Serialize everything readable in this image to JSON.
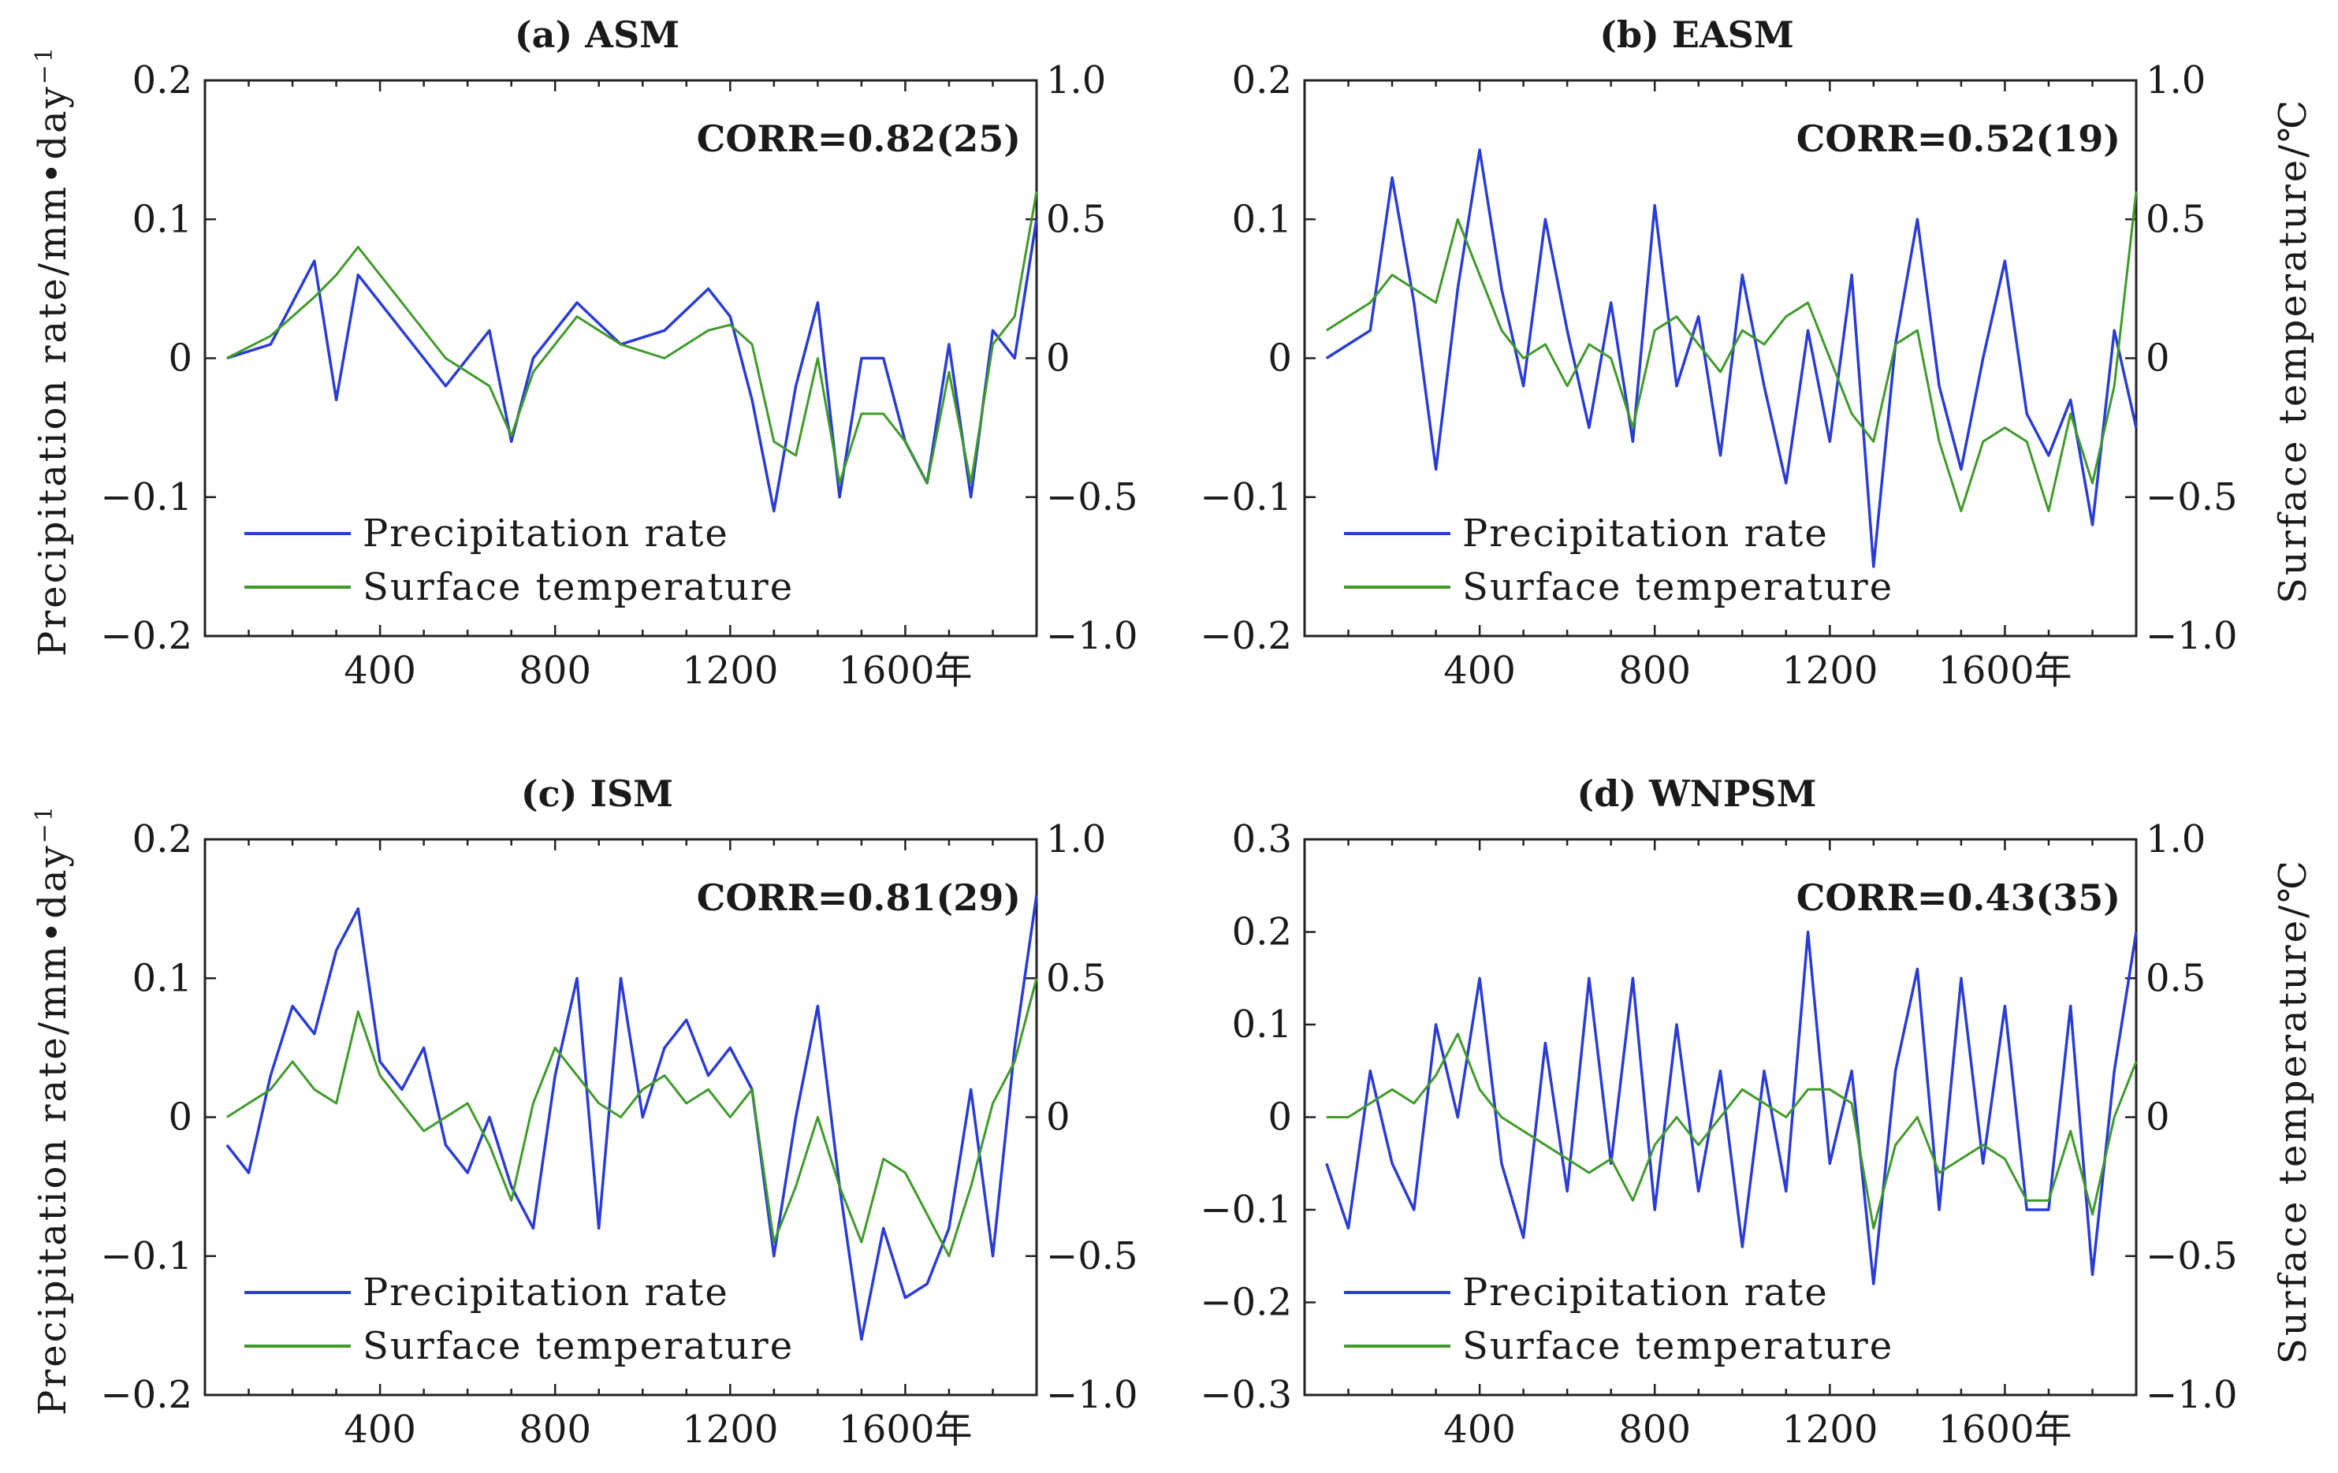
{
  "figure": {
    "left_axis_label": "Precipitation rate/mm•day",
    "left_axis_label_sup": "−1",
    "right_axis_label": "Surface temperature/℃",
    "colors": {
      "precip": "#2a3cd6",
      "temp": "#3f9a2a"
    }
  },
  "chart_data": [
    {
      "type": "line",
      "id": "a",
      "title": "(a) ASM",
      "corr": "CORR=0.82(25)",
      "xlabel": "",
      "xticks": [
        "400",
        "800",
        "1200",
        "1600年"
      ],
      "xtick_values": [
        400,
        800,
        1200,
        1600
      ],
      "xlim": [
        0,
        1900
      ],
      "ylim_left": [
        -0.2,
        0.2
      ],
      "yticks_left": [
        "−0.2",
        "−0.1",
        "0",
        "0.1",
        "0.2"
      ],
      "ylim_right": [
        -1.0,
        1.0
      ],
      "yticks_right": [
        "−1.0",
        "−0.5",
        "0",
        "0.5",
        "1.0"
      ],
      "legend": [
        "Precipitation rate",
        "Surface temperature"
      ],
      "series": [
        {
          "name": "Precipitation rate",
          "x": [
            50,
            150,
            250,
            300,
            350,
            450,
            550,
            650,
            700,
            750,
            850,
            950,
            1050,
            1150,
            1200,
            1250,
            1300,
            1350,
            1400,
            1450,
            1500,
            1550,
            1600,
            1650,
            1700,
            1750,
            1800,
            1850,
            1900
          ],
          "values": [
            0.0,
            0.01,
            0.07,
            -0.03,
            0.06,
            0.02,
            -0.02,
            0.02,
            -0.06,
            0.0,
            0.04,
            0.01,
            0.02,
            0.05,
            0.03,
            -0.03,
            -0.11,
            -0.02,
            0.04,
            -0.1,
            0.0,
            0.0,
            -0.06,
            -0.09,
            0.01,
            -0.1,
            0.02,
            0.0,
            0.1
          ]
        },
        {
          "name": "Surface temperature",
          "x": [
            50,
            150,
            250,
            300,
            350,
            450,
            550,
            650,
            700,
            750,
            850,
            950,
            1050,
            1150,
            1200,
            1250,
            1300,
            1350,
            1400,
            1450,
            1500,
            1550,
            1600,
            1650,
            1700,
            1750,
            1800,
            1850,
            1900
          ],
          "values": [
            0.0,
            0.08,
            0.22,
            0.3,
            0.4,
            0.2,
            0.0,
            -0.1,
            -0.28,
            -0.05,
            0.15,
            0.05,
            0.0,
            0.1,
            0.12,
            0.05,
            -0.3,
            -0.35,
            0.0,
            -0.45,
            -0.2,
            -0.2,
            -0.3,
            -0.45,
            -0.05,
            -0.45,
            0.05,
            0.15,
            0.6
          ]
        }
      ]
    },
    {
      "type": "line",
      "id": "b",
      "title": "(b) EASM",
      "corr": "CORR=0.52(19)",
      "xlabel": "",
      "xticks": [
        "400",
        "800",
        "1200",
        "1600年"
      ],
      "xtick_values": [
        400,
        800,
        1200,
        1600
      ],
      "xlim": [
        0,
        1900
      ],
      "ylim_left": [
        -0.2,
        0.2
      ],
      "yticks_left": [
        "−0.2",
        "−0.1",
        "0",
        "0.1",
        "0.2"
      ],
      "ylim_right": [
        -1.0,
        1.0
      ],
      "yticks_right": [
        "−1.0",
        "−0.5",
        "0",
        "0.5",
        "1.0"
      ],
      "legend": [
        "Precipitation rate",
        "Surface temperature"
      ],
      "series": [
        {
          "name": "Precipitation rate",
          "x": [
            50,
            150,
            200,
            250,
            300,
            350,
            400,
            450,
            500,
            550,
            600,
            650,
            700,
            750,
            800,
            850,
            900,
            950,
            1000,
            1050,
            1100,
            1150,
            1200,
            1250,
            1300,
            1350,
            1400,
            1450,
            1500,
            1550,
            1600,
            1650,
            1700,
            1750,
            1800,
            1850,
            1900
          ],
          "values": [
            0.0,
            0.02,
            0.13,
            0.04,
            -0.08,
            0.05,
            0.15,
            0.05,
            -0.02,
            0.1,
            0.02,
            -0.05,
            0.04,
            -0.06,
            0.11,
            -0.02,
            0.03,
            -0.07,
            0.06,
            -0.02,
            -0.09,
            0.02,
            -0.06,
            0.06,
            -0.15,
            0.01,
            0.1,
            -0.02,
            -0.08,
            0.0,
            0.07,
            -0.04,
            -0.07,
            -0.03,
            -0.12,
            0.02,
            -0.05
          ]
        },
        {
          "name": "Surface temperature",
          "x": [
            50,
            150,
            200,
            250,
            300,
            350,
            400,
            450,
            500,
            550,
            600,
            650,
            700,
            750,
            800,
            850,
            900,
            950,
            1000,
            1050,
            1100,
            1150,
            1200,
            1250,
            1300,
            1350,
            1400,
            1450,
            1500,
            1550,
            1600,
            1650,
            1700,
            1750,
            1800,
            1850,
            1900
          ],
          "values": [
            0.1,
            0.2,
            0.3,
            0.25,
            0.2,
            0.5,
            0.3,
            0.1,
            0.0,
            0.05,
            -0.1,
            0.05,
            0.0,
            -0.25,
            0.1,
            0.15,
            0.05,
            -0.05,
            0.1,
            0.05,
            0.15,
            0.2,
            0.0,
            -0.2,
            -0.3,
            0.05,
            0.1,
            -0.3,
            -0.55,
            -0.3,
            -0.25,
            -0.3,
            -0.55,
            -0.2,
            -0.45,
            -0.1,
            0.6
          ]
        }
      ]
    },
    {
      "type": "line",
      "id": "c",
      "title": "(c) ISM",
      "corr": "CORR=0.81(29)",
      "xlabel": "",
      "xticks": [
        "400",
        "800",
        "1200",
        "1600年"
      ],
      "xtick_values": [
        400,
        800,
        1200,
        1600
      ],
      "xlim": [
        0,
        1900
      ],
      "ylim_left": [
        -0.2,
        0.2
      ],
      "yticks_left": [
        "−0.2",
        "−0.1",
        "0",
        "0.1",
        "0.2"
      ],
      "ylim_right": [
        -1.0,
        1.0
      ],
      "yticks_right": [
        "−1.0",
        "−0.5",
        "0",
        "0.5",
        "1.0"
      ],
      "legend": [
        "Precipitation rate",
        "Surface temperature"
      ],
      "series": [
        {
          "name": "Precipitation rate",
          "x": [
            50,
            100,
            150,
            200,
            250,
            300,
            350,
            400,
            450,
            500,
            550,
            600,
            650,
            700,
            750,
            800,
            850,
            900,
            950,
            1000,
            1050,
            1100,
            1150,
            1200,
            1250,
            1300,
            1350,
            1400,
            1450,
            1500,
            1550,
            1600,
            1650,
            1700,
            1750,
            1800,
            1850,
            1900
          ],
          "values": [
            -0.02,
            -0.04,
            0.03,
            0.08,
            0.06,
            0.12,
            0.15,
            0.04,
            0.02,
            0.05,
            -0.02,
            -0.04,
            0.0,
            -0.05,
            -0.08,
            0.03,
            0.1,
            -0.08,
            0.1,
            0.0,
            0.05,
            0.07,
            0.03,
            0.05,
            0.02,
            -0.1,
            0.0,
            0.08,
            -0.05,
            -0.16,
            -0.08,
            -0.13,
            -0.12,
            -0.08,
            0.02,
            -0.1,
            0.05,
            0.16
          ]
        },
        {
          "name": "Surface temperature",
          "x": [
            50,
            100,
            150,
            200,
            250,
            300,
            350,
            400,
            450,
            500,
            550,
            600,
            650,
            700,
            750,
            800,
            850,
            900,
            950,
            1000,
            1050,
            1100,
            1150,
            1200,
            1250,
            1300,
            1350,
            1400,
            1450,
            1500,
            1550,
            1600,
            1650,
            1700,
            1750,
            1800,
            1850,
            1900
          ],
          "values": [
            0.0,
            0.05,
            0.1,
            0.2,
            0.1,
            0.05,
            0.38,
            0.15,
            0.05,
            -0.05,
            0.0,
            0.05,
            -0.1,
            -0.3,
            0.05,
            0.25,
            0.15,
            0.05,
            0.0,
            0.1,
            0.15,
            0.05,
            0.1,
            0.0,
            0.1,
            -0.45,
            -0.25,
            0.0,
            -0.25,
            -0.45,
            -0.15,
            -0.2,
            -0.35,
            -0.5,
            -0.25,
            0.05,
            0.2,
            0.5
          ]
        }
      ]
    },
    {
      "type": "line",
      "id": "d",
      "title": "(d) WNPSM",
      "corr": "CORR=0.43(35)",
      "xlabel": "",
      "xticks": [
        "400",
        "800",
        "1200",
        "1600年"
      ],
      "xtick_values": [
        400,
        800,
        1200,
        1600
      ],
      "xlim": [
        0,
        1900
      ],
      "ylim_left": [
        -0.3,
        0.3
      ],
      "yticks_left": [
        "−0.3",
        "−0.2",
        "−0.1",
        "0",
        "0.1",
        "0.2",
        "0.3"
      ],
      "ylim_right": [
        -1.0,
        1.0
      ],
      "yticks_right": [
        "−1.0",
        "−0.5",
        "0",
        "0.5",
        "1.0"
      ],
      "legend": [
        "Precipitation rate",
        "Surface temperature"
      ],
      "series": [
        {
          "name": "Precipitation rate",
          "x": [
            50,
            100,
            150,
            200,
            250,
            300,
            350,
            400,
            450,
            500,
            550,
            600,
            650,
            700,
            750,
            800,
            850,
            900,
            950,
            1000,
            1050,
            1100,
            1150,
            1200,
            1250,
            1300,
            1350,
            1400,
            1450,
            1500,
            1550,
            1600,
            1650,
            1700,
            1750,
            1800,
            1850,
            1900
          ],
          "values": [
            -0.05,
            -0.12,
            0.05,
            -0.05,
            -0.1,
            0.1,
            0.0,
            0.15,
            -0.05,
            -0.13,
            0.08,
            -0.08,
            0.15,
            -0.05,
            0.15,
            -0.1,
            0.1,
            -0.08,
            0.05,
            -0.14,
            0.05,
            -0.08,
            0.2,
            -0.05,
            0.05,
            -0.18,
            0.05,
            0.16,
            -0.1,
            0.15,
            -0.05,
            0.12,
            -0.1,
            -0.1,
            0.12,
            -0.17,
            0.05,
            0.2
          ]
        },
        {
          "name": "Surface temperature",
          "x": [
            50,
            100,
            150,
            200,
            250,
            300,
            350,
            400,
            450,
            500,
            550,
            600,
            650,
            700,
            750,
            800,
            850,
            900,
            950,
            1000,
            1050,
            1100,
            1150,
            1200,
            1250,
            1300,
            1350,
            1400,
            1450,
            1500,
            1550,
            1600,
            1650,
            1700,
            1750,
            1800,
            1850,
            1900
          ],
          "values": [
            0.0,
            0.0,
            0.05,
            0.1,
            0.05,
            0.15,
            0.3,
            0.1,
            0.0,
            -0.05,
            -0.1,
            -0.15,
            -0.2,
            -0.15,
            -0.3,
            -0.1,
            0.0,
            -0.1,
            0.0,
            0.1,
            0.05,
            0.0,
            0.1,
            0.1,
            0.05,
            -0.4,
            -0.1,
            0.0,
            -0.2,
            -0.15,
            -0.1,
            -0.15,
            -0.3,
            -0.3,
            -0.05,
            -0.35,
            0.0,
            0.2
          ]
        }
      ]
    }
  ]
}
